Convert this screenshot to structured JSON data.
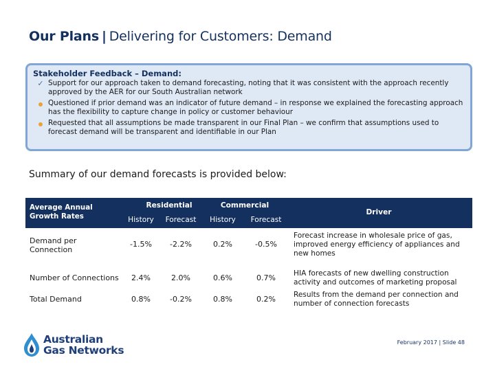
{
  "title": {
    "bold": "Our Plans",
    "separator": "|",
    "rest": "Delivering for Customers: Demand"
  },
  "feedback": {
    "heading": "Stakeholder Feedback – Demand:",
    "items": [
      {
        "marker": "check",
        "text": "Support for our approach taken to demand forecasting, noting that it was consistent with the approach recently approved by the AER for our South Australian network"
      },
      {
        "marker": "bullet",
        "text": "Questioned if prior demand was an indicator of future demand – in response we explained the forecasting approach has the flexibility to capture change in policy or customer behaviour"
      },
      {
        "marker": "bullet",
        "text": "Requested that all assumptions be made transparent in our Final Plan – we confirm that assumptions used to forecast demand will be transparent and identifiable in our Plan"
      }
    ],
    "colors": {
      "fill": "#dfe8f5",
      "border": "#7fa6d6",
      "bullet": "#e8a33a",
      "check": "#4a6f9c"
    }
  },
  "summary_text": "Summary of our demand forecasts is provided below:",
  "table": {
    "header": {
      "label": "Average Annual Growth Rates",
      "residential": "Residential",
      "commercial": "Commercial",
      "history": "History",
      "forecast": "Forecast",
      "driver": "Driver"
    },
    "rows": [
      {
        "label": "Demand per Connection",
        "res_history": "-1.5%",
        "res_forecast": "-2.2%",
        "com_history": "0.2%",
        "com_forecast": "-0.5%",
        "driver": "Forecast increase in wholesale price of gas, improved energy efficiency of appliances and new homes"
      },
      {
        "label": "Number of Connections",
        "res_history": "2.4%",
        "res_forecast": "2.0%",
        "com_history": "0.6%",
        "com_forecast": "0.7%",
        "driver": "HIA forecasts of new dwelling construction activity and outcomes of marketing proposal"
      },
      {
        "label": "Total Demand",
        "res_history": "0.8%",
        "res_forecast": "-0.2%",
        "com_history": "0.8%",
        "com_forecast": "0.2%",
        "driver": "Results from the demand per connection and number of connection forecasts"
      }
    ],
    "colors": {
      "header_bg": "#14305f"
    }
  },
  "logo": {
    "line1": "Australian",
    "line2": "Gas Networks",
    "icon": "gas-flame-droplet-icon"
  },
  "footer": "February 2017 | Slide 48"
}
